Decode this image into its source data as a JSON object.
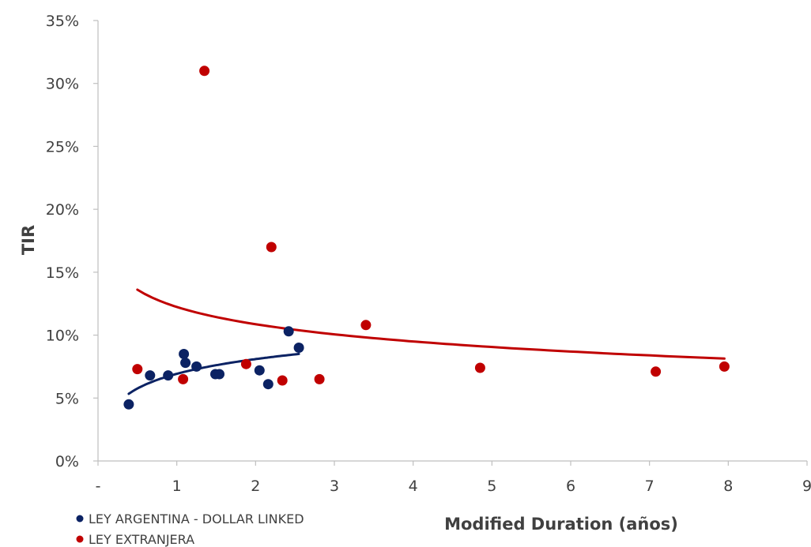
{
  "chart_data": {
    "type": "scatter",
    "title": "",
    "xlabel": "Modified Duration (años)",
    "ylabel": "TIR",
    "xlim": [
      0,
      9
    ],
    "ylim": [
      0,
      35
    ],
    "x_ticks": [
      {
        "value": 0,
        "label": "-"
      },
      {
        "value": 1,
        "label": "1"
      },
      {
        "value": 2,
        "label": "2"
      },
      {
        "value": 3,
        "label": "3"
      },
      {
        "value": 4,
        "label": "4"
      },
      {
        "value": 5,
        "label": "5"
      },
      {
        "value": 6,
        "label": "6"
      },
      {
        "value": 7,
        "label": "7"
      },
      {
        "value": 8,
        "label": "8"
      },
      {
        "value": 9,
        "label": "9"
      }
    ],
    "y_ticks": [
      {
        "value": 0,
        "label": "0%"
      },
      {
        "value": 5,
        "label": "5%"
      },
      {
        "value": 10,
        "label": "10%"
      },
      {
        "value": 15,
        "label": "15%"
      },
      {
        "value": 20,
        "label": "20%"
      },
      {
        "value": 25,
        "label": "25%"
      },
      {
        "value": 30,
        "label": "30%"
      },
      {
        "value": 35,
        "label": "35%"
      }
    ],
    "grid": false,
    "legend_position": "bottom-left",
    "series": [
      {
        "name": "LEY ARGENTINA - DOLLAR LINKED",
        "color": "#0b2263",
        "points": [
          [
            0.39,
            4.5
          ],
          [
            0.66,
            6.8
          ],
          [
            0.89,
            6.8
          ],
          [
            1.09,
            8.5
          ],
          [
            1.11,
            7.8
          ],
          [
            1.25,
            7.5
          ],
          [
            1.49,
            6.9
          ],
          [
            1.54,
            6.9
          ],
          [
            2.05,
            7.2
          ],
          [
            2.16,
            6.1
          ],
          [
            2.42,
            10.3
          ],
          [
            2.55,
            9.0
          ]
        ],
        "trend": {
          "type": "logarithmic",
          "from": 0.39,
          "to": 2.55
        }
      },
      {
        "name": "LEY EXTRANJERA",
        "color": "#c00000",
        "points": [
          [
            0.5,
            7.3
          ],
          [
            1.08,
            6.5
          ],
          [
            1.35,
            31.0
          ],
          [
            1.88,
            7.7
          ],
          [
            2.2,
            17.0
          ],
          [
            2.34,
            6.4
          ],
          [
            2.81,
            6.5
          ],
          [
            3.4,
            10.8
          ],
          [
            4.85,
            7.4
          ],
          [
            7.08,
            7.1
          ],
          [
            7.95,
            7.5
          ]
        ],
        "trend": {
          "type": "logarithmic",
          "from": 0.5,
          "to": 7.95
        }
      }
    ]
  }
}
